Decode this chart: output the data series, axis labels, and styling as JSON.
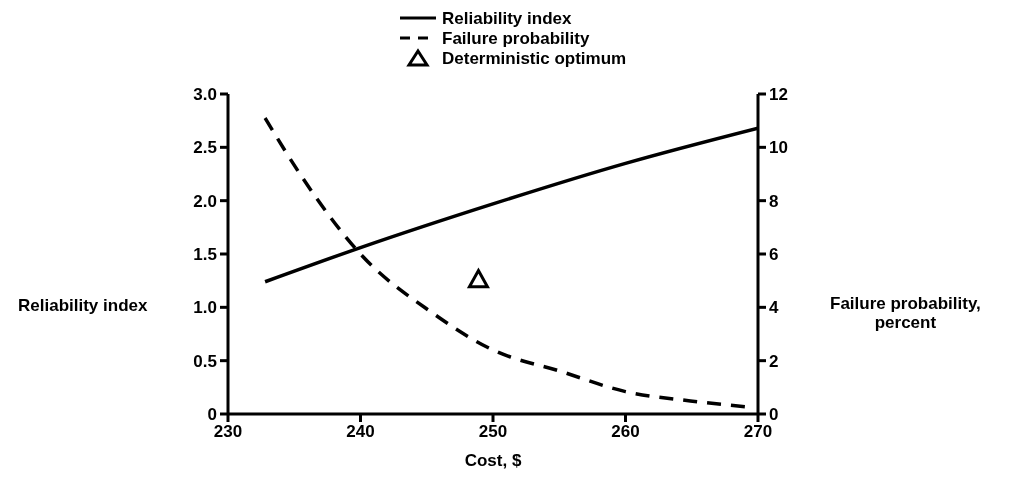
{
  "chart_data": {
    "type": "line",
    "xlabel": "Cost, $",
    "ylabel": "Reliability index",
    "y2label": "Failure probability,\npercent",
    "xlim": [
      230,
      270
    ],
    "xticks": [
      230,
      240,
      250,
      260,
      270
    ],
    "ylim": [
      0,
      3
    ],
    "yticks": [
      {
        "value": 0,
        "label": "0"
      },
      {
        "value": 0.5,
        "label": "0.5"
      },
      {
        "value": 1,
        "label": "1.0"
      },
      {
        "value": 1.5,
        "label": "1.5"
      },
      {
        "value": 2,
        "label": "2.0"
      },
      {
        "value": 2.5,
        "label": "2.5"
      },
      {
        "value": 3,
        "label": "3.0"
      }
    ],
    "y2lim": [
      0,
      12
    ],
    "y2ticks": [
      0,
      2,
      4,
      6,
      8,
      10,
      12
    ],
    "grid": false,
    "legend": "top",
    "series": [
      {
        "name": "Reliability index",
        "color": "#000000",
        "line_style": "solid",
        "marker": "none",
        "x": [
          232.8,
          240,
          250,
          260,
          270
        ],
        "values": [
          1.24,
          1.56,
          1.97,
          2.35,
          2.68
        ]
      },
      {
        "name": "Failure probability",
        "color": "#000000",
        "line_style": "dashed",
        "marker": "none",
        "axis": "y2",
        "x": [
          232.8,
          235.7,
          240,
          245.4,
          250,
          255.1,
          260,
          264.9,
          269.1
        ],
        "values": [
          11.1,
          8.8,
          6.0,
          3.8,
          2.4,
          1.6,
          0.84,
          0.49,
          0.27
        ]
      },
      {
        "name": "Deterministic optimum",
        "type": "scatter",
        "color": "#000000",
        "marker": "triangle",
        "x": [
          248.9
        ],
        "values": [
          1.26
        ]
      }
    ]
  }
}
